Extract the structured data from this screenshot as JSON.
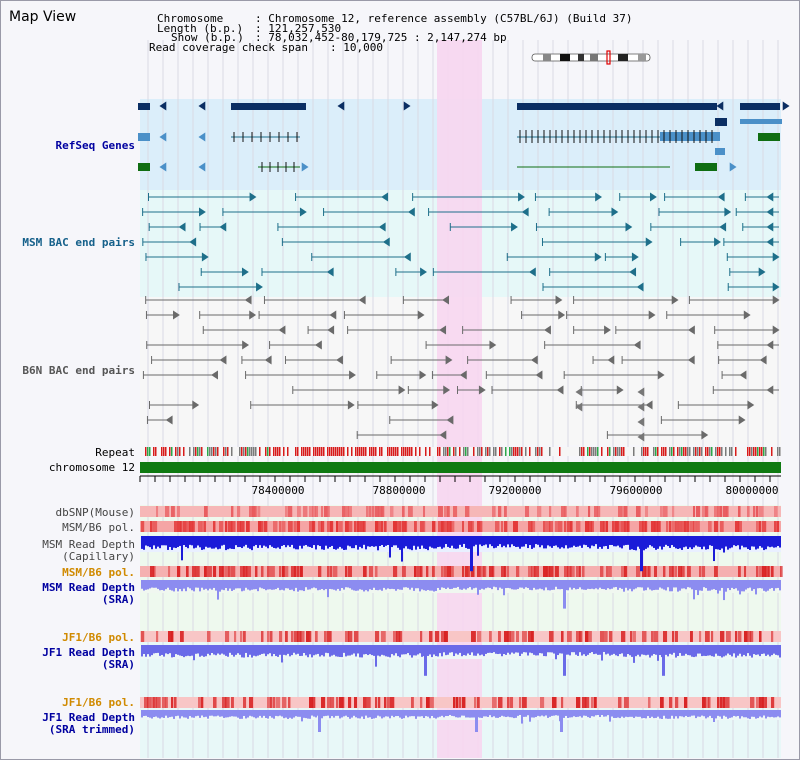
{
  "view": {
    "title": "Map View",
    "info": {
      "chromosome_key": "Chromosome",
      "chromosome_value": ": Chromosome 12, reference assembly (C57BL/6J) (Build 37)",
      "length_key": "Length (b.p.)",
      "length_value": ": 121,257,530",
      "show_key": "Show (b.p.)",
      "show_value": ": 78,032,452-80,179,725 : 2,147,274 bp",
      "span_key": "Read coverage check span",
      "span_value": ": 10,000"
    }
  },
  "tracks": {
    "refseq": "RefSeq Genes",
    "msm_bac": "MSM BAC end pairs",
    "b6n_bac": "B6N BAC end pairs",
    "repeat": "Repeat",
    "chromosome": "chromosome 12",
    "dbsnp": "dbSNP(Mouse)",
    "msm_pol": "MSM/B6 pol.",
    "msm_depth_cap_1": "MSM Read Depth",
    "msm_depth_cap_2": "(Capillary)",
    "msm_pol2": "MSM/B6 pol.",
    "msm_depth_sra_1": "MSM Read Depth",
    "msm_depth_sra_2": "(SRA)",
    "jf1_pol": "JF1/B6 pol.",
    "jf1_depth_sra_1": "JF1 Read Depth",
    "jf1_depth_sra_2": "(SRA)",
    "jf1_pol2": "JF1/B6 pol.",
    "jf1_depth_trim_1": "JF1 Read Depth",
    "jf1_depth_trim_2": "(SRA trimmed)"
  },
  "axis": {
    "ticks": [
      "78400000",
      "78800000",
      "79200000",
      "79600000",
      "80000000"
    ]
  },
  "colors": {
    "navy": "#0b2e63",
    "teal": "#1e6f8a",
    "gene_light": "#4b90c8",
    "gene_green": "#0f6d12",
    "highlight": "#f7d6f0",
    "label_blue": "#0000a0",
    "label_orange": "#d08a00",
    "label_teal": "#15608a"
  }
}
